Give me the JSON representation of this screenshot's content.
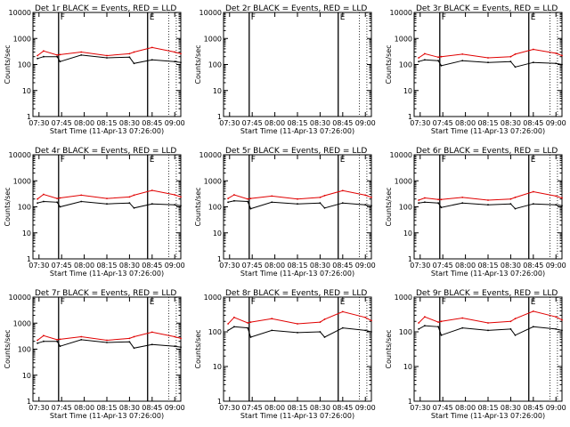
{
  "colors": {
    "events": "#000000",
    "lld": "#e00000",
    "axis": "#000000",
    "background": "#ffffff"
  },
  "x_tick_labels": [
    "07:30",
    "07:45",
    "08:00",
    "08:15",
    "08:30",
    "08:45",
    "09:00"
  ],
  "x_axis_title": "Start Time (11-Apr-13 07:26:00)",
  "y_axis_title": "Counts/sec",
  "marker_labels": [
    "F",
    "E"
  ],
  "chart_data": [
    {
      "type": "line",
      "title": "Det 1r BLACK = Events, RED = LLD",
      "yscale": "log",
      "ylim": [
        1,
        10000
      ],
      "y_tick_labels": [
        "1",
        "10",
        "100",
        "1000",
        "10000"
      ],
      "markers": [
        {
          "time": "07:43",
          "label": "F"
        },
        {
          "time": "08:42",
          "label": "E"
        }
      ],
      "series": [
        {
          "name": "Events",
          "color": "#000000",
          "x": [
            "07:29",
            "07:33",
            "07:42",
            "07:44",
            "07:58",
            "08:15",
            "08:30",
            "08:33",
            "08:45",
            "09:00",
            "09:04"
          ],
          "y": [
            170,
            200,
            200,
            130,
            230,
            180,
            190,
            110,
            150,
            130,
            120
          ]
        },
        {
          "name": "LLD",
          "color": "#e00000",
          "x": [
            "07:29",
            "07:33",
            "07:42",
            "07:44",
            "07:58",
            "08:15",
            "08:30",
            "08:33",
            "08:45",
            "09:00",
            "09:04"
          ],
          "y": [
            220,
            330,
            230,
            240,
            300,
            220,
            260,
            300,
            450,
            300,
            260
          ]
        }
      ]
    },
    {
      "type": "line",
      "title": "Det 2r BLACK = Events, RED = LLD",
      "yscale": "log",
      "ylim": [
        1,
        10000
      ],
      "y_tick_labels": [
        "1",
        "10",
        "100",
        "1000",
        "10000"
      ],
      "markers": [
        {
          "time": "07:43",
          "label": "F"
        },
        {
          "time": "08:42",
          "label": "E"
        }
      ],
      "series": []
    },
    {
      "type": "line",
      "title": "Det 3r BLACK = Events, RED = LLD",
      "yscale": "log",
      "ylim": [
        1,
        10000
      ],
      "y_tick_labels": [
        "1",
        "10",
        "100",
        "1000",
        "10000"
      ],
      "markers": [
        {
          "time": "07:43",
          "label": "F"
        },
        {
          "time": "08:42",
          "label": "E"
        }
      ],
      "series": [
        {
          "name": "Events",
          "color": "#000000",
          "x": [
            "07:29",
            "07:33",
            "07:42",
            "07:44",
            "07:58",
            "08:15",
            "08:30",
            "08:33",
            "08:45",
            "09:00",
            "09:04"
          ],
          "y": [
            130,
            150,
            140,
            90,
            140,
            120,
            130,
            80,
            120,
            110,
            100
          ]
        },
        {
          "name": "LLD",
          "color": "#e00000",
          "x": [
            "07:29",
            "07:33",
            "07:42",
            "07:44",
            "07:58",
            "08:15",
            "08:30",
            "08:33",
            "08:45",
            "09:00",
            "09:04"
          ],
          "y": [
            180,
            260,
            190,
            200,
            250,
            180,
            200,
            250,
            380,
            270,
            220
          ]
        }
      ]
    },
    {
      "type": "line",
      "title": "Det 4r BLACK = Events, RED = LLD",
      "yscale": "log",
      "ylim": [
        1,
        10000
      ],
      "y_tick_labels": [
        "1",
        "10",
        "100",
        "1000",
        "10000"
      ],
      "markers": [
        {
          "time": "07:43",
          "label": "F"
        },
        {
          "time": "08:42",
          "label": "E"
        }
      ],
      "series": [
        {
          "name": "Events",
          "color": "#000000",
          "x": [
            "07:29",
            "07:33",
            "07:42",
            "07:44",
            "07:58",
            "08:15",
            "08:30",
            "08:33",
            "08:45",
            "09:00",
            "09:04"
          ],
          "y": [
            140,
            160,
            150,
            100,
            160,
            130,
            140,
            90,
            130,
            120,
            110
          ]
        },
        {
          "name": "LLD",
          "color": "#e00000",
          "x": [
            "07:29",
            "07:33",
            "07:42",
            "07:44",
            "07:58",
            "08:15",
            "08:30",
            "08:33",
            "08:45",
            "09:00",
            "09:04"
          ],
          "y": [
            200,
            300,
            210,
            220,
            280,
            210,
            240,
            280,
            430,
            290,
            240
          ]
        }
      ]
    },
    {
      "type": "line",
      "title": "Det 5r BLACK = Events, RED = LLD",
      "yscale": "log",
      "ylim": [
        1,
        10000
      ],
      "y_tick_labels": [
        "1",
        "10",
        "100",
        "1000",
        "10000"
      ],
      "markers": [
        {
          "time": "07:43",
          "label": "F"
        },
        {
          "time": "08:42",
          "label": "E"
        }
      ],
      "series": [
        {
          "name": "Events",
          "color": "#000000",
          "x": [
            "07:29",
            "07:33",
            "07:42",
            "07:44",
            "07:58",
            "08:15",
            "08:30",
            "08:33",
            "08:45",
            "09:00",
            "09:04"
          ],
          "y": [
            150,
            170,
            160,
            85,
            150,
            130,
            140,
            90,
            140,
            120,
            110
          ]
        },
        {
          "name": "LLD",
          "color": "#e00000",
          "x": [
            "07:29",
            "07:33",
            "07:42",
            "07:44",
            "07:58",
            "08:15",
            "08:30",
            "08:33",
            "08:45",
            "09:00",
            "09:04"
          ],
          "y": [
            210,
            290,
            200,
            210,
            260,
            200,
            230,
            270,
            420,
            280,
            230
          ]
        }
      ]
    },
    {
      "type": "line",
      "title": "Det 6r BLACK = Events, RED = LLD",
      "yscale": "log",
      "ylim": [
        1,
        10000
      ],
      "y_tick_labels": [
        "1",
        "10",
        "100",
        "1000",
        "10000"
      ],
      "markers": [
        {
          "time": "07:43",
          "label": "F"
        },
        {
          "time": "08:42",
          "label": "E"
        }
      ],
      "series": [
        {
          "name": "Events",
          "color": "#000000",
          "x": [
            "07:29",
            "07:33",
            "07:42",
            "07:44",
            "07:58",
            "08:15",
            "08:30",
            "08:33",
            "08:45",
            "09:00",
            "09:04"
          ],
          "y": [
            140,
            150,
            140,
            95,
            140,
            120,
            130,
            85,
            130,
            120,
            110
          ]
        },
        {
          "name": "LLD",
          "color": "#e00000",
          "x": [
            "07:29",
            "07:33",
            "07:42",
            "07:44",
            "07:58",
            "08:15",
            "08:30",
            "08:33",
            "08:45",
            "09:00",
            "09:04"
          ],
          "y": [
            180,
            220,
            190,
            190,
            230,
            180,
            200,
            230,
            380,
            260,
            220
          ]
        }
      ]
    },
    {
      "type": "line",
      "title": "Det 7r BLACK = Events, RED = LLD",
      "yscale": "log",
      "ylim": [
        1,
        10000
      ],
      "y_tick_labels": [
        "1",
        "10",
        "100",
        "1000",
        "10000"
      ],
      "markers": [
        {
          "time": "07:43",
          "label": "F"
        },
        {
          "time": "08:42",
          "label": "E"
        }
      ],
      "series": [
        {
          "name": "Events",
          "color": "#000000",
          "x": [
            "07:29",
            "07:33",
            "07:42",
            "07:44",
            "07:58",
            "08:15",
            "08:30",
            "08:33",
            "08:45",
            "09:00",
            "09:04"
          ],
          "y": [
            170,
            200,
            200,
            130,
            230,
            180,
            190,
            110,
            150,
            130,
            120
          ]
        },
        {
          "name": "LLD",
          "color": "#e00000",
          "x": [
            "07:29",
            "07:33",
            "07:42",
            "07:44",
            "07:58",
            "08:15",
            "08:30",
            "08:33",
            "08:45",
            "09:00",
            "09:04"
          ],
          "y": [
            220,
            330,
            230,
            240,
            300,
            220,
            260,
            300,
            450,
            300,
            260
          ]
        }
      ]
    },
    {
      "type": "line",
      "title": "Det 8r BLACK = Events, RED = LLD",
      "yscale": "log",
      "ylim": [
        1,
        1000
      ],
      "y_tick_labels": [
        "1",
        "10",
        "100",
        "1000"
      ],
      "markers": [
        {
          "time": "07:43",
          "label": "F"
        },
        {
          "time": "08:42",
          "label": "E"
        }
      ],
      "series": [
        {
          "name": "Events",
          "color": "#000000",
          "x": [
            "07:29",
            "07:33",
            "07:42",
            "07:44",
            "07:58",
            "08:15",
            "08:30",
            "08:33",
            "08:45",
            "09:00",
            "09:04"
          ],
          "y": [
            110,
            140,
            130,
            70,
            110,
            95,
            100,
            70,
            130,
            110,
            100
          ]
        },
        {
          "name": "LLD",
          "color": "#e00000",
          "x": [
            "07:29",
            "07:33",
            "07:42",
            "07:44",
            "07:58",
            "08:15",
            "08:30",
            "08:33",
            "08:45",
            "09:00",
            "09:04"
          ],
          "y": [
            170,
            260,
            180,
            190,
            240,
            170,
            190,
            230,
            380,
            260,
            210
          ]
        }
      ]
    },
    {
      "type": "line",
      "title": "Det 9r BLACK = Events, RED = LLD",
      "yscale": "log",
      "ylim": [
        1,
        1000
      ],
      "y_tick_labels": [
        "1",
        "10",
        "100",
        "1000"
      ],
      "markers": [
        {
          "time": "07:43",
          "label": "F"
        },
        {
          "time": "08:42",
          "label": "E"
        }
      ],
      "series": [
        {
          "name": "Events",
          "color": "#000000",
          "x": [
            "07:29",
            "07:33",
            "07:42",
            "07:44",
            "07:58",
            "08:15",
            "08:30",
            "08:33",
            "08:45",
            "09:00",
            "09:04"
          ],
          "y": [
            120,
            150,
            140,
            80,
            130,
            110,
            120,
            80,
            140,
            120,
            110
          ]
        },
        {
          "name": "LLD",
          "color": "#e00000",
          "x": [
            "07:29",
            "07:33",
            "07:42",
            "07:44",
            "07:58",
            "08:15",
            "08:30",
            "08:33",
            "08:45",
            "09:00",
            "09:04"
          ],
          "y": [
            180,
            270,
            190,
            200,
            250,
            180,
            200,
            240,
            390,
            270,
            220
          ]
        }
      ]
    }
  ]
}
